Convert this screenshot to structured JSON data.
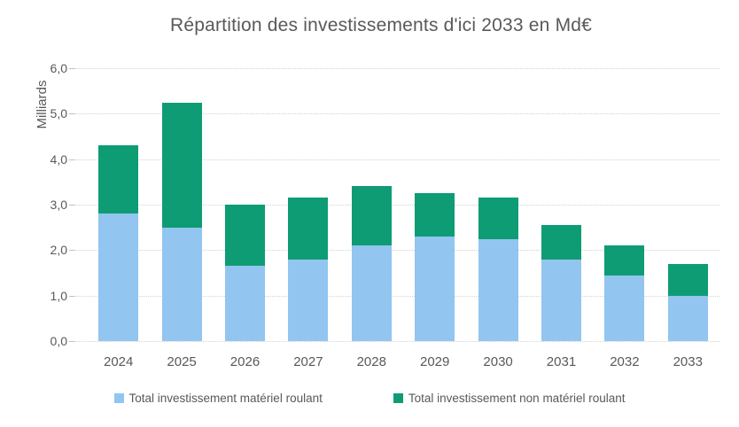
{
  "chart_data": {
    "type": "bar",
    "stacked": true,
    "title": "Répartition des investissements d'ici 2033 en Md€",
    "ylabel": "Milliards",
    "categories": [
      "2024",
      "2025",
      "2026",
      "2027",
      "2028",
      "2029",
      "2030",
      "2031",
      "2032",
      "2033"
    ],
    "series": [
      {
        "name": "Total investissement matériel roulant",
        "color": "#92C5F0",
        "values": [
          2.8,
          2.5,
          1.65,
          1.8,
          2.1,
          2.3,
          2.25,
          1.8,
          1.45,
          1.0
        ]
      },
      {
        "name": "Total investissement non matériel roulant",
        "color": "#0E9C74",
        "values": [
          1.5,
          2.75,
          1.35,
          1.35,
          1.3,
          0.95,
          0.9,
          0.75,
          0.65,
          0.7
        ]
      }
    ],
    "ylim": [
      0,
      6
    ],
    "ytick_step": 1,
    "ytick_labels": [
      "0,0",
      "1,0",
      "2,0",
      "3,0",
      "4,0",
      "5,0",
      "6,0"
    ],
    "grid": true,
    "legend_position": "bottom"
  },
  "colors": {
    "title_text": "#595959",
    "axis_text": "#595959",
    "gridline": "#D2D2D2",
    "background": "#FFFFFF"
  }
}
